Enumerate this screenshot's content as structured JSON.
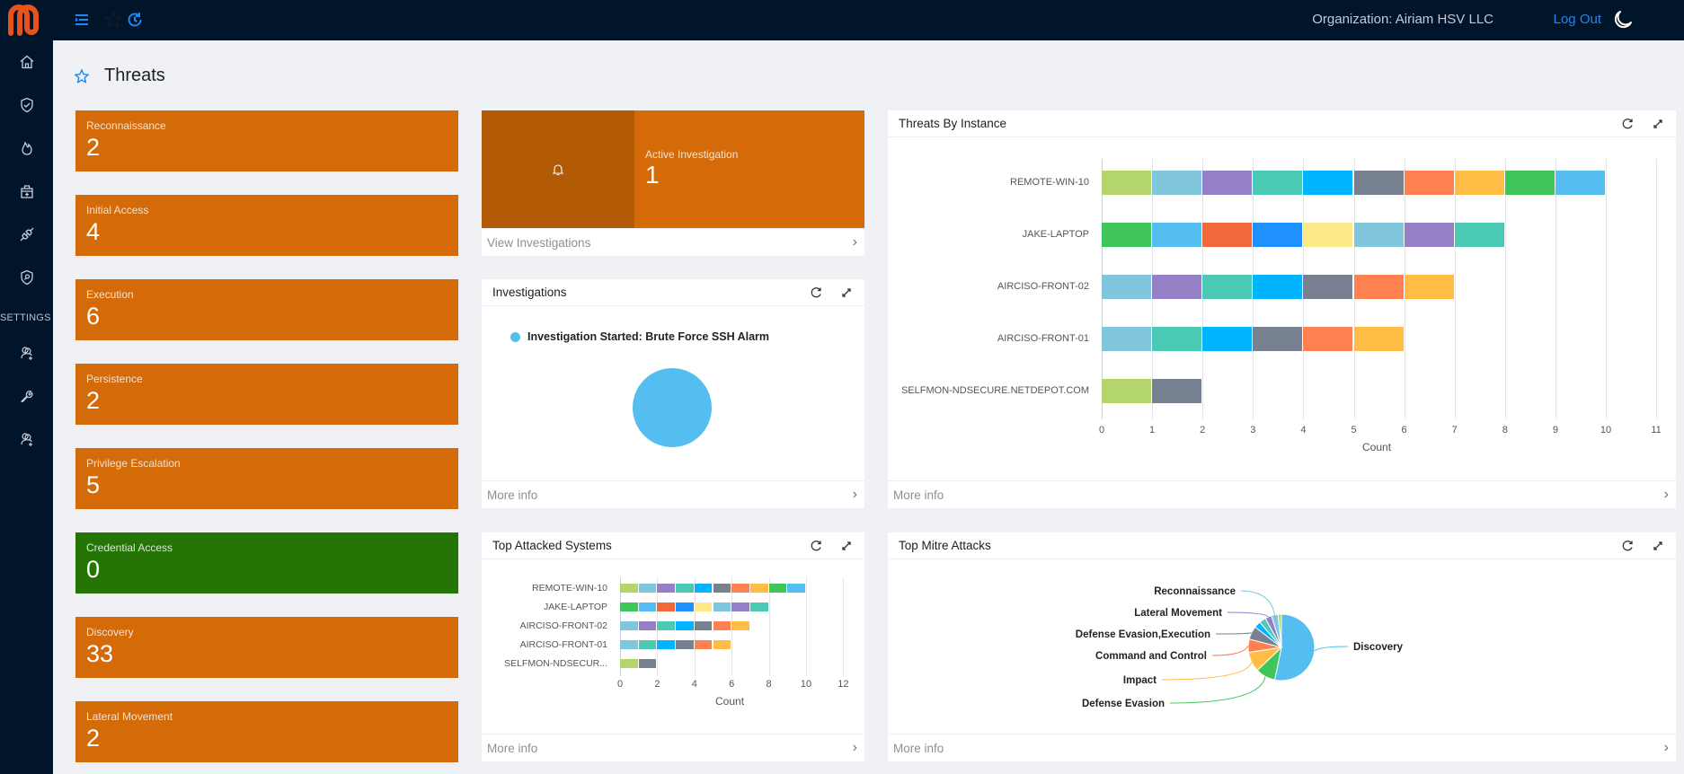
{
  "topbar": {
    "organization": "Organization: Airiam HSV LLC",
    "logout": "Log Out",
    "icons": [
      "menu-icon",
      "star-icon",
      "history-icon",
      "moon-icon"
    ]
  },
  "sidebar": {
    "items": [
      {
        "name": "home",
        "icon": "home-icon"
      },
      {
        "name": "shield-check",
        "icon": "shield-check-icon"
      },
      {
        "name": "threats",
        "icon": "flame-icon"
      },
      {
        "name": "incidents",
        "icon": "medkit-icon"
      },
      {
        "name": "integrations",
        "icon": "plug-icon"
      },
      {
        "name": "policies",
        "icon": "shield-search-icon"
      }
    ],
    "settings_label": "SETTINGS",
    "settings_items": [
      {
        "name": "users",
        "icon": "user-add-icon"
      },
      {
        "name": "tools",
        "icon": "wrench-icon"
      },
      {
        "name": "groups",
        "icon": "user-add-icon"
      }
    ]
  },
  "page": {
    "title": "Threats"
  },
  "tiles": [
    {
      "label": "Reconnaissance",
      "value": "2",
      "color": "#d56a08"
    },
    {
      "label": "Initial Access",
      "value": "4",
      "color": "#d56a08"
    },
    {
      "label": "Execution",
      "value": "6",
      "color": "#d56a08"
    },
    {
      "label": "Persistence",
      "value": "2",
      "color": "#d56a08"
    },
    {
      "label": "Privilege Escalation",
      "value": "5",
      "color": "#d56a08"
    },
    {
      "label": "Credential Access",
      "value": "0",
      "color": "#247505"
    },
    {
      "label": "Discovery",
      "value": "33",
      "color": "#d56a08"
    },
    {
      "label": "Lateral Movement",
      "value": "2",
      "color": "#d56a08"
    }
  ],
  "active_investigation": {
    "label": "Active Investigation",
    "value": "1",
    "footer": "View Investigations"
  },
  "investigations_panel": {
    "title": "Investigations",
    "legend": "Investigation Started: Brute Force SSH Alarm",
    "footer": "More info"
  },
  "threats_by_instance_panel": {
    "title": "Threats By Instance",
    "footer": "More info"
  },
  "top_attacked_panel": {
    "title": "Top Attacked Systems",
    "footer": "More info"
  },
  "top_mitre_panel": {
    "title": "Top Mitre Attacks",
    "footer": "More info"
  },
  "chart_data": [
    {
      "type": "bar",
      "title": "Threats By Instance",
      "orientation": "horizontal",
      "stacked": true,
      "categories": [
        "REMOTE-WIN-10",
        "JAKE-LAPTOP",
        "AIRCISO-FRONT-02",
        "AIRCISO-FRONT-01",
        "SELFMON-NDSECURE.NETDEPOT.COM"
      ],
      "values": [
        10,
        8,
        7,
        6,
        2
      ],
      "segment_colors": [
        [
          "#b3d56a",
          "#80c7dd",
          "#957fc6",
          "#4ac9b4",
          "#00b4ff",
          "#78818f",
          "#ff8050",
          "#ffbd45",
          "#3ec65a",
          "#54bef0"
        ],
        [
          "#3ec65a",
          "#54bef0",
          "#f0693c",
          "#1e90ff",
          "#fde88a",
          "#80c7dd",
          "#957fc6",
          "#4ac9b4"
        ],
        [
          "#80c7dd",
          "#957fc6",
          "#4ac9b4",
          "#00b4ff",
          "#78818f",
          "#ff8050",
          "#ffbd45"
        ],
        [
          "#80c7dd",
          "#4ac9b4",
          "#00b4ff",
          "#78818f",
          "#ff8050",
          "#ffbd45"
        ],
        [
          "#b3d56a",
          "#78818f"
        ]
      ],
      "xlabel": "Count",
      "ylabel": "",
      "xticks": [
        "0",
        "1",
        "2",
        "3",
        "4",
        "5",
        "6",
        "7",
        "8",
        "9",
        "10",
        "11"
      ],
      "xlim": [
        0,
        11
      ],
      "grid": true
    },
    {
      "type": "bar",
      "title": "Top Attacked Systems",
      "orientation": "horizontal",
      "stacked": true,
      "categories": [
        "REMOTE-WIN-10",
        "JAKE-LAPTOP",
        "AIRCISO-FRONT-02",
        "AIRCISO-FRONT-01",
        "SELFMON-NDSECUR..."
      ],
      "values": [
        10,
        8,
        7,
        6,
        2
      ],
      "xlabel": "Count",
      "xticks": [
        "0",
        "2",
        "4",
        "6",
        "8",
        "10",
        "12"
      ],
      "xlim": [
        0,
        12
      ],
      "grid": true
    },
    {
      "type": "pie",
      "title": "Top Mitre Attacks",
      "slices": [
        {
          "label": "Discovery",
          "value": 33,
          "color": "#54bef0"
        },
        {
          "label": "Defense Evasion",
          "value": 6,
          "color": "#3ec65a"
        },
        {
          "label": "Impact",
          "value": 6,
          "color": "#ffbd45"
        },
        {
          "label": "Command and Control",
          "value": 4,
          "color": "#ff8050"
        },
        {
          "label": "Defense Evasion,Execution",
          "value": 4,
          "color": "#78818f"
        },
        {
          "label": "",
          "value": 2,
          "color": "#00b4ff"
        },
        {
          "label": "",
          "value": 2,
          "color": "#4ac9b4"
        },
        {
          "label": "Lateral Movement",
          "value": 2,
          "color": "#957fc6"
        },
        {
          "label": "Reconnaissance",
          "value": 2,
          "color": "#80c7dd"
        },
        {
          "label": "",
          "value": 1,
          "color": "#b3d56a"
        }
      ]
    },
    {
      "type": "pie",
      "title": "Investigations",
      "slices": [
        {
          "label": "Investigation Started: Brute Force SSH Alarm",
          "value": 1,
          "color": "#54bef0"
        }
      ]
    }
  ]
}
